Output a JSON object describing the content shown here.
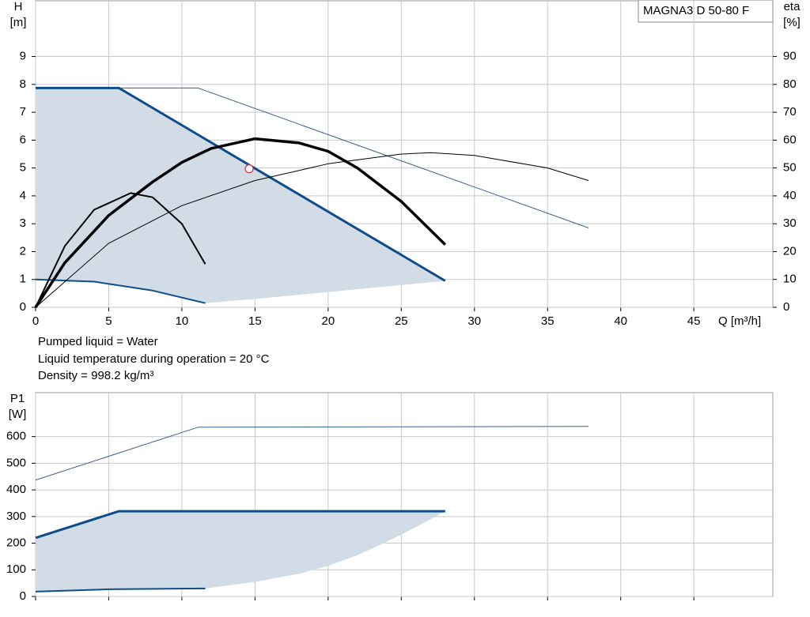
{
  "chart_data": [
    {
      "type": "line",
      "title": "MAGNA3 D 50-80 F",
      "ylabel": [
        "H",
        "[m]"
      ],
      "y2label": [
        "eta",
        "[%]"
      ],
      "xlabel": "Q [m³/h]",
      "xlim": [
        0,
        50.4
      ],
      "xticks": [
        0,
        5,
        10,
        15,
        20,
        25,
        30,
        35,
        40,
        45
      ],
      "show_xtick_labels": true,
      "ylim": [
        0,
        11
      ],
      "yticks": [
        0,
        1,
        2,
        3,
        4,
        5,
        6,
        7,
        8,
        9
      ],
      "y2lim": [
        0,
        110
      ],
      "y2ticks": [
        0,
        10,
        20,
        30,
        40,
        50,
        60,
        70,
        80,
        90
      ],
      "grid": true,
      "notes": [
        "Pumped liquid = Water",
        "Liquid temperature during operation = 20 °C",
        "Density = 998.2 kg/m³"
      ],
      "series": [
        {
          "kind": "area",
          "color": "#d1dce7",
          "x": [
            0,
            5.7,
            28,
            25,
            20,
            15,
            11.6,
            8,
            4,
            0
          ],
          "values": [
            7.87,
            7.87,
            0.95,
            0.8,
            0.55,
            0.3,
            0.15,
            0.6,
            0.92,
            1.0
          ]
        },
        {
          "kind": "line",
          "color": "#3d5f8e",
          "width": 1,
          "x": [
            0,
            11.1,
            37.8
          ],
          "values": [
            7.87,
            7.87,
            2.85
          ]
        },
        {
          "kind": "line",
          "color": "#0f4c8a",
          "width": 3,
          "x": [
            0,
            5.7,
            28
          ],
          "values": [
            7.87,
            7.87,
            0.95
          ]
        },
        {
          "kind": "line",
          "color": "#0f4c8a",
          "width": 2,
          "x": [
            0,
            4,
            8,
            11.6
          ],
          "values": [
            1.0,
            0.92,
            0.6,
            0.15
          ]
        },
        {
          "kind": "line",
          "color": "#000000",
          "width": 1,
          "axis": "y2",
          "x": [
            0,
            5,
            10,
            15,
            20,
            25,
            27,
            30,
            35,
            37.8
          ],
          "values": [
            0,
            23,
            36.5,
            45.5,
            51.5,
            55,
            55.5,
            54.5,
            50,
            45.5
          ]
        },
        {
          "kind": "line",
          "color": "#000000",
          "width": 2,
          "axis": "y2",
          "x": [
            0,
            2,
            4,
            6.5,
            8,
            10,
            11.6
          ],
          "values": [
            0,
            22,
            35,
            41,
            39.5,
            30,
            15.5
          ]
        },
        {
          "kind": "line",
          "color": "#000000",
          "width": 3.5,
          "axis": "y2",
          "x": [
            0,
            2,
            5,
            8,
            10,
            12,
            15,
            18,
            20,
            22,
            25,
            28
          ],
          "values": [
            0,
            16,
            33,
            45,
            52,
            57,
            60.5,
            59,
            56,
            50,
            38,
            22.5
          ]
        },
        {
          "kind": "marker",
          "color": "#e03030",
          "x": [
            14.6
          ],
          "values": [
            4.97
          ]
        }
      ]
    },
    {
      "type": "line",
      "ylabel": [
        "P1",
        "[W]"
      ],
      "xlim": [
        0,
        50.4
      ],
      "xticks": [
        0,
        5,
        10,
        15,
        20,
        25,
        30,
        35,
        40,
        45
      ],
      "show_xtick_labels": false,
      "ylim": [
        0,
        765
      ],
      "yticks": [
        0,
        100,
        200,
        300,
        400,
        500,
        600
      ],
      "grid": true,
      "series": [
        {
          "kind": "area",
          "color": "#d1dce7",
          "x": [
            0,
            5.7,
            28,
            26,
            24,
            22,
            20,
            18,
            15,
            11.6,
            5,
            0
          ],
          "values": [
            220,
            320,
            320,
            260,
            205,
            155,
            115,
            85,
            55,
            30,
            27,
            18
          ]
        },
        {
          "kind": "line",
          "color": "#3d5f8e",
          "width": 1,
          "x": [
            0,
            11.1,
            37.8
          ],
          "values": [
            437,
            635,
            638
          ]
        },
        {
          "kind": "line",
          "color": "#0f4c8a",
          "width": 3,
          "x": [
            0,
            5.7,
            28
          ],
          "values": [
            220,
            320,
            320
          ]
        },
        {
          "kind": "line",
          "color": "#0f4c8a",
          "width": 2,
          "x": [
            0,
            5,
            11.6
          ],
          "values": [
            18,
            27,
            30
          ]
        }
      ]
    }
  ]
}
